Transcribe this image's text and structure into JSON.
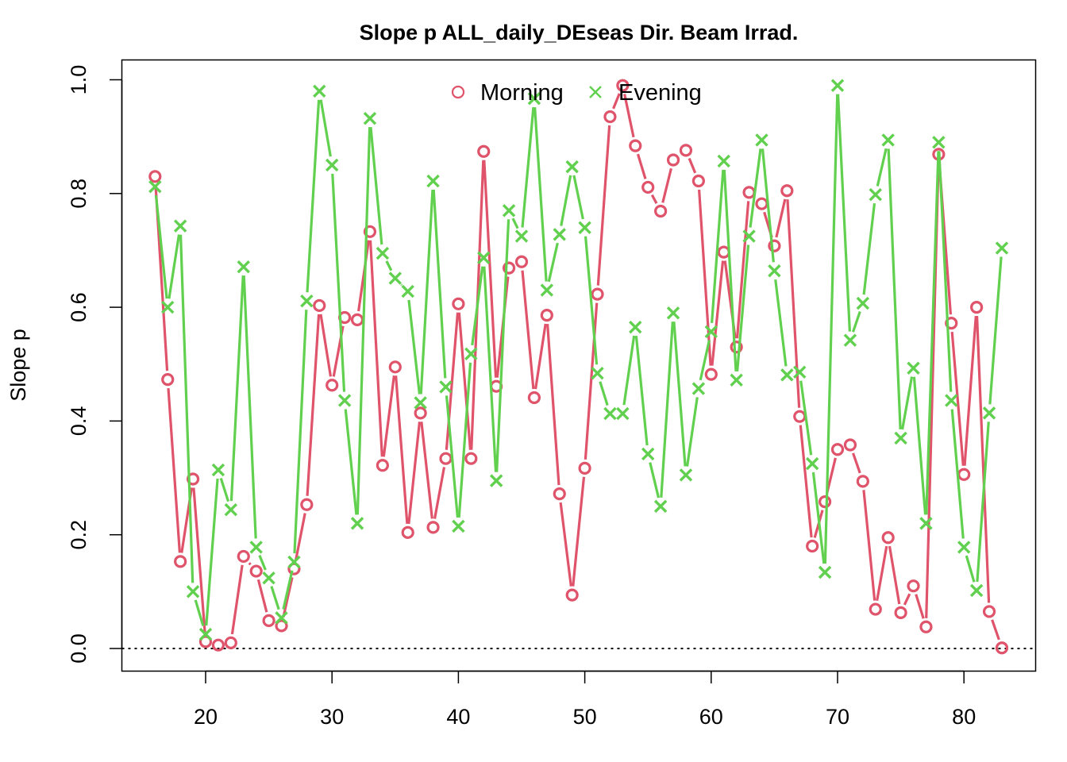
{
  "chart_data": {
    "type": "line",
    "title": "Slope p ALL_daily_DEseas Dir. Beam Irrad.",
    "xlabel": "",
    "ylabel": "Slope p",
    "xlim": [
      16,
      83
    ],
    "ylim": [
      0.0,
      1.0
    ],
    "x_ticks": [
      20,
      30,
      40,
      50,
      60,
      70,
      80
    ],
    "y_ticks": [
      "0.0",
      "0.2",
      "0.4",
      "0.6",
      "0.8",
      "1.0"
    ],
    "reference_line": {
      "y": 0.0,
      "style": "dotted"
    },
    "legend": {
      "placement": "top-center",
      "entries": [
        "Morning",
        "Evening"
      ]
    },
    "x": [
      16,
      17,
      18,
      19,
      20,
      21,
      22,
      23,
      24,
      25,
      26,
      27,
      28,
      29,
      30,
      31,
      32,
      33,
      34,
      35,
      36,
      37,
      38,
      39,
      40,
      41,
      42,
      43,
      44,
      45,
      46,
      47,
      48,
      49,
      50,
      51,
      52,
      53,
      54,
      55,
      56,
      57,
      58,
      59,
      60,
      61,
      62,
      63,
      64,
      65,
      66,
      67,
      68,
      69,
      70,
      71,
      72,
      73,
      74,
      75,
      76,
      77,
      78,
      79,
      80,
      81,
      82,
      83
    ],
    "series": [
      {
        "name": "Morning",
        "color": "#DF536B",
        "marker": "circle",
        "values": [
          0.83,
          0.473,
          0.153,
          0.298,
          0.012,
          0.006,
          0.01,
          0.162,
          0.136,
          0.049,
          0.04,
          0.14,
          0.253,
          0.603,
          0.463,
          0.582,
          0.578,
          0.733,
          0.322,
          0.495,
          0.204,
          0.414,
          0.213,
          0.334,
          0.606,
          0.334,
          0.874,
          0.461,
          0.669,
          0.68,
          0.441,
          0.586,
          0.272,
          0.094,
          0.317,
          0.623,
          0.935,
          0.99,
          0.884,
          0.811,
          0.769,
          0.859,
          0.876,
          0.822,
          0.482,
          0.697,
          0.53,
          0.802,
          0.782,
          0.708,
          0.805,
          0.408,
          0.18,
          0.258,
          0.35,
          0.358,
          0.294,
          0.069,
          0.195,
          0.063,
          0.11,
          0.038,
          0.869,
          0.572,
          0.306,
          0.6,
          0.065,
          0.001
        ]
      },
      {
        "name": "Evening",
        "color": "#61D04F",
        "marker": "cross",
        "values": [
          0.812,
          0.6,
          0.743,
          0.1,
          0.025,
          0.314,
          0.244,
          0.671,
          0.178,
          0.124,
          0.054,
          0.152,
          0.611,
          0.98,
          0.85,
          0.436,
          0.22,
          0.932,
          0.695,
          0.651,
          0.628,
          0.432,
          0.822,
          0.46,
          0.215,
          0.518,
          0.687,
          0.295,
          0.77,
          0.725,
          0.967,
          0.63,
          0.728,
          0.847,
          0.74,
          0.484,
          0.413,
          0.413,
          0.565,
          0.342,
          0.25,
          0.59,
          0.305,
          0.457,
          0.557,
          0.857,
          0.472,
          0.725,
          0.894,
          0.664,
          0.481,
          0.486,
          0.325,
          0.134,
          0.99,
          0.542,
          0.607,
          0.798,
          0.894,
          0.37,
          0.493,
          0.22,
          0.89,
          0.436,
          0.178,
          0.102,
          0.414,
          0.704
        ]
      }
    ]
  }
}
